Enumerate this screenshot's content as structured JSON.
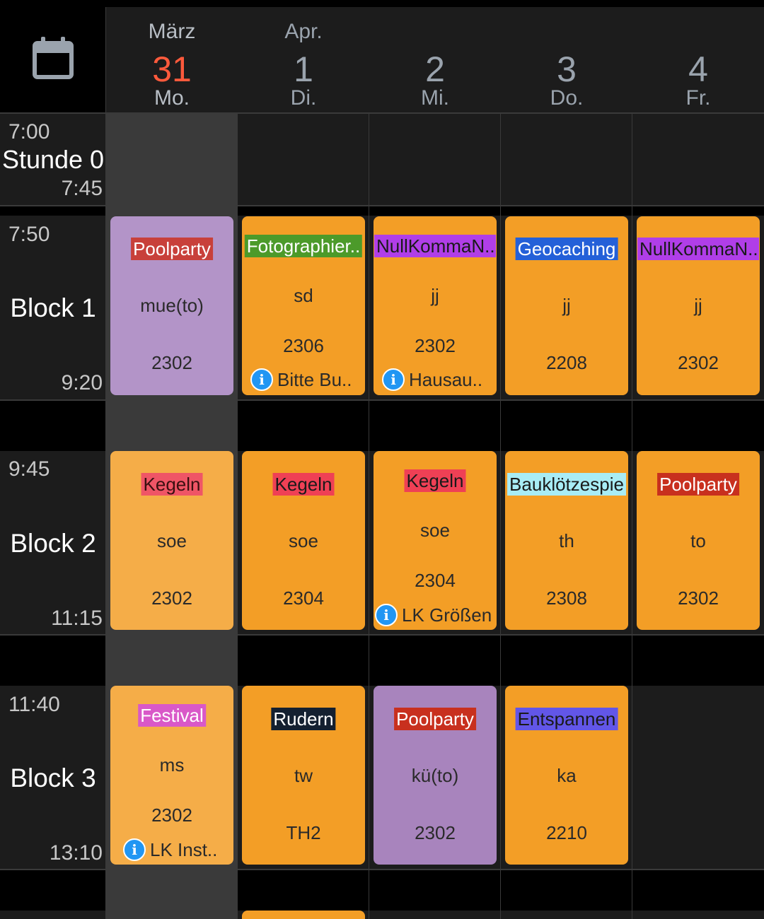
{
  "colors": {
    "orange": "#f39e26",
    "orange_light": "#f5ad48",
    "purple": "#b394c8",
    "purple_dark": "#a884bd",
    "today": "#ff5a3c",
    "info": "#2196f3"
  },
  "header": {
    "icon": "calendar-icon",
    "days": [
      {
        "month": "März",
        "day": "31",
        "weekday": "Mo.",
        "today": true
      },
      {
        "month": "Apr.",
        "day": "1",
        "weekday": "Di.",
        "today": false
      },
      {
        "month": "",
        "day": "2",
        "weekday": "Mi.",
        "today": false
      },
      {
        "month": "",
        "day": "3",
        "weekday": "Do.",
        "today": false
      },
      {
        "month": "",
        "day": "4",
        "weekday": "Fr.",
        "today": false
      }
    ]
  },
  "periods": [
    {
      "name": "Stunde 0",
      "start": "7:00",
      "end": "7:45"
    },
    {
      "name": "Block 1",
      "start": "7:50",
      "end": "9:20"
    },
    {
      "name": "Block 2",
      "start": "9:45",
      "end": "11:15"
    },
    {
      "name": "Block 3",
      "start": "11:40",
      "end": "13:10"
    }
  ],
  "lessons": {
    "block1": [
      {
        "subject": "Poolparty",
        "subject_bg": "#c8403a",
        "subject_fg": "#ffffff",
        "teacher": "mue(to)",
        "room": "2302",
        "card_bg": "#b394c8",
        "info": ""
      },
      {
        "subject": "Fotographier..",
        "subject_bg": "#4c9a2a",
        "subject_fg": "#ffffff",
        "teacher": "sd",
        "room": "2306",
        "card_bg": "#f39e26",
        "info": "Bitte Bu.."
      },
      {
        "subject": "NullKommaN..",
        "subject_bg": "#b03ee8",
        "subject_fg": "#1a1a1a",
        "teacher": "jj",
        "room": "2302",
        "card_bg": "#f39e26",
        "info": "Hausau.."
      },
      {
        "subject": "Geocaching",
        "subject_bg": "#2460d8",
        "subject_fg": "#ffffff",
        "teacher": "jj",
        "room": "2208",
        "card_bg": "#f39e26",
        "info": ""
      },
      {
        "subject": "NullKommaN..",
        "subject_bg": "#b03ee8",
        "subject_fg": "#1a1a1a",
        "teacher": "jj",
        "room": "2302",
        "card_bg": "#f39e26",
        "info": ""
      }
    ],
    "block2": [
      {
        "subject": "Kegeln",
        "subject_bg": "#ef5566",
        "subject_fg": "#3a1010",
        "teacher": "soe",
        "room": "2302",
        "card_bg": "#f5ad48",
        "info": ""
      },
      {
        "subject": "Kegeln",
        "subject_bg": "#ef4055",
        "subject_fg": "#1a1a1a",
        "teacher": "soe",
        "room": "2304",
        "card_bg": "#f39e26",
        "info": ""
      },
      {
        "subject": "Kegeln",
        "subject_bg": "#ef4055",
        "subject_fg": "#1a1a1a",
        "teacher": "soe",
        "room": "2304",
        "card_bg": "#f39e26",
        "info": "LK Größen"
      },
      {
        "subject": "Bauklötzespie",
        "subject_bg": "#a8ecf5",
        "subject_fg": "#1a1a1a",
        "teacher": "th",
        "room": "2308",
        "card_bg": "#f39e26",
        "info": ""
      },
      {
        "subject": "Poolparty",
        "subject_bg": "#c8301e",
        "subject_fg": "#ffffff",
        "teacher": "to",
        "room": "2302",
        "card_bg": "#f39e26",
        "info": ""
      }
    ],
    "block3": [
      {
        "subject": "Festival",
        "subject_bg": "#d958c8",
        "subject_fg": "#ffffff",
        "teacher": "ms",
        "room": "2302",
        "card_bg": "#f5ad48",
        "info": "LK Inst.."
      },
      {
        "subject": "Rudern",
        "subject_bg": "#142030",
        "subject_fg": "#ffffff",
        "teacher": "tw",
        "room": "TH2",
        "card_bg": "#f39e26",
        "info": ""
      },
      {
        "subject": "Poolparty",
        "subject_bg": "#c8301e",
        "subject_fg": "#ffffff",
        "teacher": "kü(to)",
        "room": "2302",
        "card_bg": "#a884bd",
        "info": ""
      },
      {
        "subject": "Entspannen",
        "subject_bg": "#6256e8",
        "subject_fg": "#1a1a1a",
        "teacher": "ka",
        "room": "2210",
        "card_bg": "#f39e26",
        "info": ""
      }
    ]
  }
}
